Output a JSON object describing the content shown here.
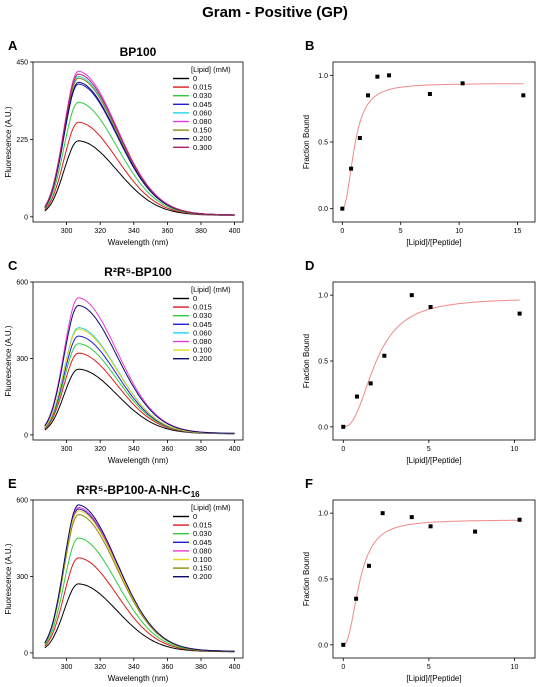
{
  "figure_title": "Gram - Positive (GP)",
  "colors": {
    "0": "#000000",
    "0.015": "#e31a1c",
    "0.030": "#2ecc40",
    "0.045": "#1f1fd6",
    "0.060": "#26d4e6",
    "0.080": "#e83ad9",
    "0.100": "#e8d51a",
    "0.150": "#8a8a10",
    "0.200": "#0c0c6e",
    "0.300": "#b0206a",
    "fit": "#f08a8a"
  },
  "chart_data": [
    {
      "panel": "A",
      "type": "line",
      "title": "BP100",
      "xlabel": "Wavelength (nm)",
      "ylabel": "Fluorescence (A.U.)",
      "xlim": [
        280,
        405
      ],
      "ylim": [
        -15,
        450
      ],
      "xticks": [
        300,
        320,
        340,
        360,
        380,
        400
      ],
      "yticks": [
        0,
        225,
        450
      ],
      "legend_title": "[Lipid] (mM)",
      "legend_position": "top-right",
      "series": [
        {
          "name": "0",
          "peak": 218
        },
        {
          "name": "0.015",
          "peak": 272
        },
        {
          "name": "0.030",
          "peak": 330
        },
        {
          "name": "0.045",
          "peak": 383
        },
        {
          "name": "0.060",
          "peak": 405
        },
        {
          "name": "0.080",
          "peak": 420
        },
        {
          "name": "0.150",
          "peak": 400
        },
        {
          "name": "0.200",
          "peak": 388
        },
        {
          "name": "0.300",
          "peak": 412
        }
      ]
    },
    {
      "panel": "B",
      "type": "scatter",
      "xlabel": "[Lipid]/[Peptide]",
      "ylabel": "Fraction Bound",
      "xlim": [
        -0.8,
        16.5
      ],
      "ylim": [
        -0.1,
        1.1
      ],
      "xticks": [
        0,
        5,
        10,
        15
      ],
      "yticks": [
        0.0,
        0.5,
        1.0
      ],
      "yticklabels": [
        "0.0",
        "0.5",
        "1.0"
      ],
      "points": [
        {
          "x": 0,
          "y": 0
        },
        {
          "x": 0.75,
          "y": 0.3
        },
        {
          "x": 1.5,
          "y": 0.53
        },
        {
          "x": 2.2,
          "y": 0.85
        },
        {
          "x": 3.0,
          "y": 0.99
        },
        {
          "x": 4.0,
          "y": 1.0
        },
        {
          "x": 7.5,
          "y": 0.86
        },
        {
          "x": 10.3,
          "y": 0.94
        },
        {
          "x": 15.5,
          "y": 0.85
        }
      ],
      "fit": {
        "bmax": 0.94,
        "k": 1.05,
        "n": 2.2,
        "x_range": [
          0,
          15.5
        ]
      }
    },
    {
      "panel": "C",
      "type": "line",
      "title": "R²R⁵-BP100",
      "xlabel": "Wavelength (nm)",
      "ylabel": "Fluorescence (A.U.)",
      "xlim": [
        280,
        405
      ],
      "ylim": [
        -20,
        600
      ],
      "xticks": [
        300,
        320,
        340,
        360,
        380,
        400
      ],
      "yticks": [
        0,
        300,
        600
      ],
      "legend_title": "[Lipid] (mM)",
      "legend_position": "top-right",
      "series": [
        {
          "name": "0",
          "peak": 255
        },
        {
          "name": "0.015",
          "peak": 318
        },
        {
          "name": "0.030",
          "peak": 355
        },
        {
          "name": "0.045",
          "peak": 385
        },
        {
          "name": "0.060",
          "peak": 418
        },
        {
          "name": "0.080",
          "peak": 535
        },
        {
          "name": "0.100",
          "peak": 412
        },
        {
          "name": "0.200",
          "peak": 505
        }
      ]
    },
    {
      "panel": "D",
      "type": "scatter",
      "xlabel": "[Lipid]/[Peptide]",
      "ylabel": "Fraction Bound",
      "xlim": [
        -0.6,
        11.2
      ],
      "ylim": [
        -0.1,
        1.1
      ],
      "xticks": [
        0,
        5,
        10
      ],
      "yticks": [
        0.0,
        0.5,
        1.0
      ],
      "yticklabels": [
        "0.0",
        "0.5",
        "1.0"
      ],
      "points": [
        {
          "x": 0,
          "y": 0
        },
        {
          "x": 0.8,
          "y": 0.23
        },
        {
          "x": 1.6,
          "y": 0.33
        },
        {
          "x": 2.4,
          "y": 0.54
        },
        {
          "x": 4.0,
          "y": 1.0
        },
        {
          "x": 5.1,
          "y": 0.91
        },
        {
          "x": 10.3,
          "y": 0.86
        }
      ],
      "fit": {
        "bmax": 0.98,
        "k": 1.9,
        "n": 2.4,
        "x_range": [
          0,
          10.3
        ]
      }
    },
    {
      "panel": "E",
      "type": "line",
      "title": "R²R⁵-BP100-A-NH-C",
      "title_subscript": "16",
      "xlabel": "Wavelength (nm)",
      "ylabel": "Fluorescence (A.U.)",
      "xlim": [
        280,
        405
      ],
      "ylim": [
        -20,
        600
      ],
      "xticks": [
        300,
        320,
        340,
        360,
        380,
        400
      ],
      "yticks": [
        0,
        300,
        600
      ],
      "legend_title": "[Lipid] (mM)",
      "legend_position": "top-right",
      "series": [
        {
          "name": "0",
          "peak": 268
        },
        {
          "name": "0.015",
          "peak": 370
        },
        {
          "name": "0.030",
          "peak": 448
        },
        {
          "name": "0.045",
          "peak": 562
        },
        {
          "name": "0.080",
          "peak": 568
        },
        {
          "name": "0.100",
          "peak": 555
        },
        {
          "name": "0.150",
          "peak": 540
        },
        {
          "name": "0.200",
          "peak": 578
        }
      ]
    },
    {
      "panel": "F",
      "type": "scatter",
      "xlabel": "[Lipid]/[Peptide]",
      "ylabel": "Fraction Bound",
      "xlim": [
        -0.6,
        11.2
      ],
      "ylim": [
        -0.1,
        1.1
      ],
      "xticks": [
        0,
        5,
        10
      ],
      "yticks": [
        0.0,
        0.5,
        1.0
      ],
      "yticklabels": [
        "0.0",
        "0.5",
        "1.0"
      ],
      "points": [
        {
          "x": 0,
          "y": 0
        },
        {
          "x": 0.75,
          "y": 0.35
        },
        {
          "x": 1.5,
          "y": 0.6
        },
        {
          "x": 2.3,
          "y": 1.0
        },
        {
          "x": 4.0,
          "y": 0.97
        },
        {
          "x": 5.1,
          "y": 0.9
        },
        {
          "x": 7.7,
          "y": 0.86
        },
        {
          "x": 10.3,
          "y": 0.95
        }
      ],
      "fit": {
        "bmax": 0.95,
        "k": 0.95,
        "n": 2.3,
        "x_range": [
          0,
          10.3
        ]
      }
    }
  ]
}
